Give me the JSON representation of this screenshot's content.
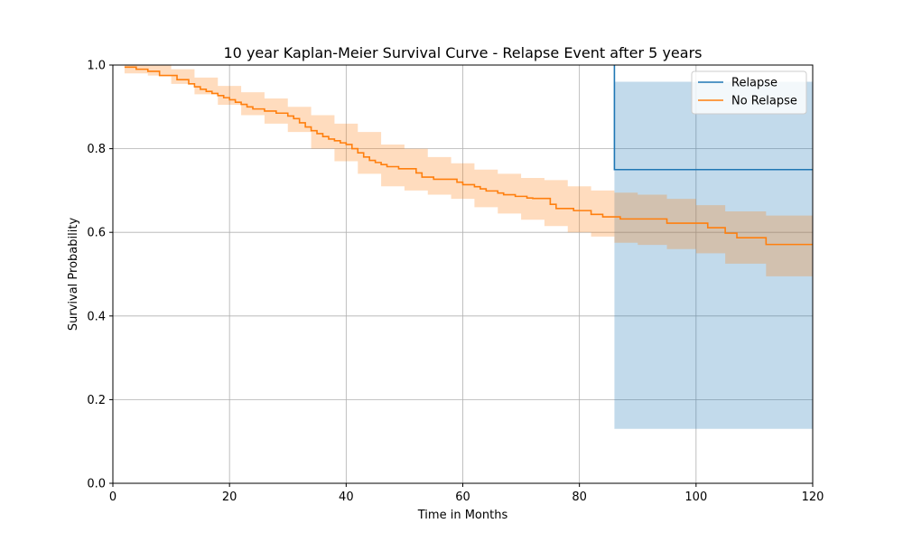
{
  "chart_data": {
    "type": "line",
    "step": true,
    "title": "10 year Kaplan-Meier Survival Curve - Relapse Event after 5 years",
    "xlabel": "Time in Months",
    "ylabel": "Survival Probability",
    "xlim": [
      0,
      120
    ],
    "ylim": [
      0,
      1.0
    ],
    "xticks": [
      0,
      20,
      40,
      60,
      80,
      100,
      120
    ],
    "yticks": [
      0.0,
      0.2,
      0.4,
      0.6,
      0.8,
      1.0
    ],
    "xtick_labels": [
      "0",
      "20",
      "40",
      "60",
      "80",
      "100",
      "120"
    ],
    "ytick_labels": [
      "0.0",
      "0.2",
      "0.4",
      "0.6",
      "0.8",
      "1.0"
    ],
    "grid": true,
    "legend_position": "upper right",
    "series": [
      {
        "name": "Relapse",
        "color": "#1f77b4",
        "x": [
          86,
          86,
          120
        ],
        "y": [
          1.0,
          0.75,
          0.75
        ],
        "ci_x": [
          86,
          120
        ],
        "ci_lower": [
          0.13,
          0.13
        ],
        "ci_upper": [
          0.96,
          0.96
        ]
      },
      {
        "name": "No Relapse",
        "color": "#ff7f0e",
        "x": [
          2,
          4,
          6,
          8,
          11,
          13,
          14,
          15,
          16,
          17,
          18,
          19,
          20,
          21,
          22,
          23,
          24,
          26,
          28,
          30,
          31,
          32,
          33,
          34,
          35,
          36,
          37,
          38,
          39,
          40,
          41,
          42,
          43,
          44,
          45,
          46,
          47,
          49,
          52,
          53,
          55,
          59,
          60,
          62,
          63,
          64,
          66,
          67,
          69,
          71,
          72,
          75,
          76,
          79,
          82,
          84,
          87,
          95,
          102,
          105,
          107,
          112
        ],
        "y": [
          0.995,
          0.99,
          0.985,
          0.975,
          0.965,
          0.955,
          0.948,
          0.942,
          0.937,
          0.932,
          0.927,
          0.922,
          0.917,
          0.911,
          0.906,
          0.9,
          0.895,
          0.89,
          0.885,
          0.878,
          0.872,
          0.862,
          0.852,
          0.843,
          0.836,
          0.829,
          0.823,
          0.819,
          0.814,
          0.81,
          0.8,
          0.79,
          0.78,
          0.772,
          0.767,
          0.762,
          0.757,
          0.752,
          0.742,
          0.732,
          0.727,
          0.72,
          0.714,
          0.709,
          0.704,
          0.699,
          0.694,
          0.69,
          0.686,
          0.682,
          0.681,
          0.667,
          0.657,
          0.652,
          0.643,
          0.637,
          0.632,
          0.622,
          0.611,
          0.598,
          0.587,
          0.571
        ],
        "ci_x": [
          2,
          6,
          10,
          14,
          18,
          22,
          26,
          30,
          34,
          38,
          42,
          46,
          50,
          54,
          58,
          62,
          66,
          70,
          74,
          78,
          82,
          86,
          90,
          95,
          100,
          105,
          112,
          120
        ],
        "ci_lower": [
          0.98,
          0.975,
          0.955,
          0.93,
          0.905,
          0.88,
          0.86,
          0.84,
          0.8,
          0.77,
          0.74,
          0.71,
          0.7,
          0.69,
          0.68,
          0.66,
          0.645,
          0.63,
          0.615,
          0.6,
          0.59,
          0.575,
          0.57,
          0.56,
          0.55,
          0.525,
          0.495,
          0.495
        ],
        "ci_upper": [
          1.0,
          1.0,
          0.99,
          0.97,
          0.95,
          0.935,
          0.92,
          0.9,
          0.88,
          0.86,
          0.84,
          0.81,
          0.8,
          0.78,
          0.765,
          0.75,
          0.74,
          0.73,
          0.725,
          0.71,
          0.7,
          0.695,
          0.69,
          0.68,
          0.665,
          0.65,
          0.64,
          0.64
        ]
      }
    ]
  }
}
